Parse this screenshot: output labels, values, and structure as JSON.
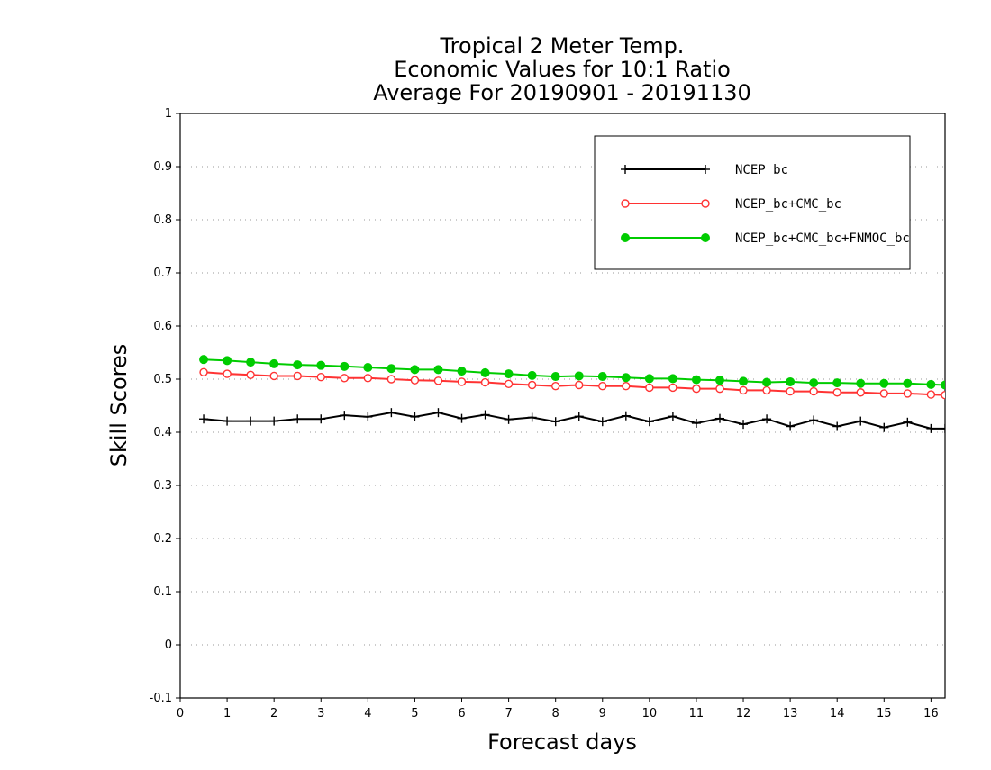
{
  "chart_data": {
    "type": "line",
    "title_lines": [
      "Tropical 2 Meter Temp.",
      "Economic Values for 10:1 Ratio",
      "Average For 20190901 - 20191130"
    ],
    "xlabel": "Forecast days",
    "ylabel": "Skill Scores",
    "xlim": [
      0,
      16.3
    ],
    "ylim": [
      -0.1,
      1
    ],
    "xticks": [
      0,
      1,
      2,
      3,
      4,
      5,
      6,
      7,
      8,
      9,
      10,
      11,
      12,
      13,
      14,
      15,
      16
    ],
    "yticks": [
      -0.1,
      0,
      0.1,
      0.2,
      0.3,
      0.4,
      0.5,
      0.6,
      0.7,
      0.8,
      0.9,
      1
    ],
    "ytick_labels": [
      "-0.1",
      "0",
      "0.1",
      "0.2",
      "0.3",
      "0.4",
      "0.5",
      "0.6",
      "0.7",
      "0.8",
      "0.9",
      "1"
    ],
    "grid": "dotted-horizontal",
    "legend_position": "top-right",
    "x": [
      0.5,
      1,
      1.5,
      2,
      2.5,
      3,
      3.5,
      4,
      4.5,
      5,
      5.5,
      6,
      6.5,
      7,
      7.5,
      8,
      8.5,
      9,
      9.5,
      10,
      10.5,
      11,
      11.5,
      12,
      12.5,
      13,
      13.5,
      14,
      14.5,
      15,
      15.5,
      16,
      16.3
    ],
    "series": [
      {
        "name": "NCEP_bc",
        "color": "#000000",
        "marker": "plus",
        "values": [
          0.425,
          0.421,
          0.421,
          0.421,
          0.425,
          0.425,
          0.432,
          0.429,
          0.437,
          0.429,
          0.437,
          0.426,
          0.433,
          0.424,
          0.428,
          0.42,
          0.43,
          0.42,
          0.431,
          0.42,
          0.43,
          0.417,
          0.426,
          0.415,
          0.425,
          0.411,
          0.423,
          0.411,
          0.421,
          0.409,
          0.419,
          0.407,
          0.407
        ]
      },
      {
        "name": "NCEP_bc+CMC_bc",
        "color": "#ff3333",
        "marker": "open-circle",
        "values": [
          0.513,
          0.51,
          0.508,
          0.506,
          0.506,
          0.504,
          0.502,
          0.502,
          0.5,
          0.498,
          0.497,
          0.495,
          0.494,
          0.491,
          0.489,
          0.487,
          0.489,
          0.487,
          0.487,
          0.484,
          0.484,
          0.482,
          0.482,
          0.479,
          0.479,
          0.477,
          0.477,
          0.475,
          0.475,
          0.473,
          0.473,
          0.471,
          0.47
        ]
      },
      {
        "name": "NCEP_bc+CMC_bc+FNMOC_bc",
        "color": "#00cc00",
        "marker": "filled-circle",
        "values": [
          0.537,
          0.535,
          0.532,
          0.529,
          0.527,
          0.526,
          0.524,
          0.522,
          0.52,
          0.518,
          0.518,
          0.515,
          0.512,
          0.51,
          0.507,
          0.505,
          0.506,
          0.505,
          0.503,
          0.501,
          0.501,
          0.499,
          0.498,
          0.496,
          0.494,
          0.495,
          0.493,
          0.493,
          0.492,
          0.492,
          0.492,
          0.49,
          0.489
        ]
      }
    ]
  }
}
